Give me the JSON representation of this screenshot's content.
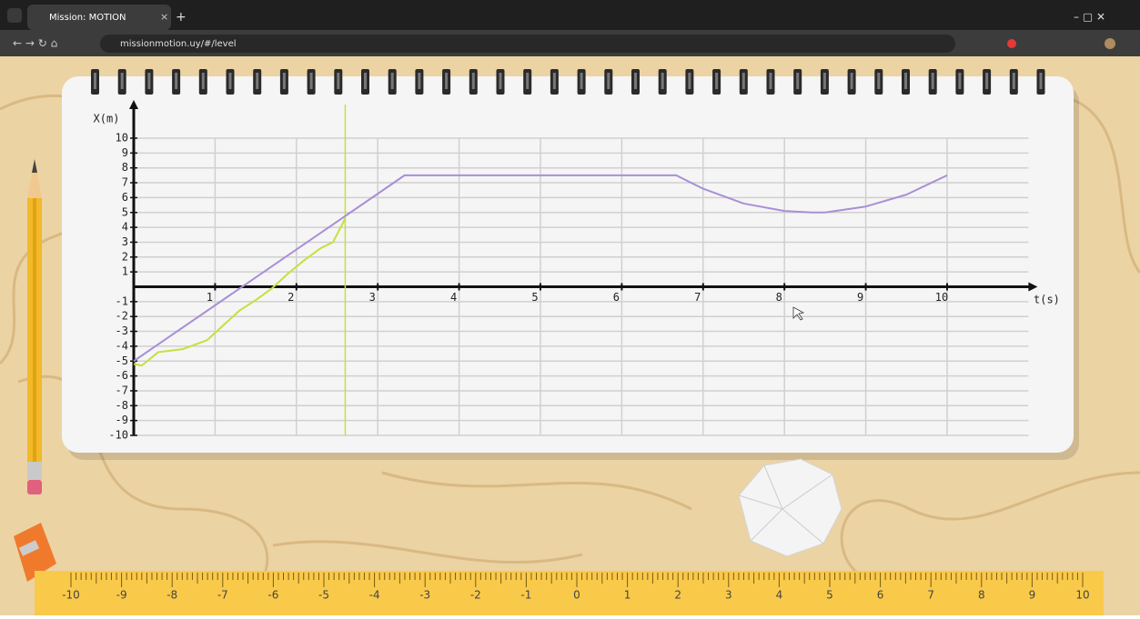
{
  "browser": {
    "tab_title": "Mission: MOTION",
    "url": "missionmotion.uy/#/level"
  },
  "chart_data": {
    "type": "line",
    "y_label": "X(m)",
    "x_label": "t(s)",
    "xlim": [
      0,
      11
    ],
    "xticks": [
      1,
      2,
      3,
      4,
      5,
      6,
      7,
      8,
      9,
      10
    ],
    "ylim": [
      -10,
      10
    ],
    "yticks": [
      10,
      9,
      8,
      7,
      6,
      5,
      4,
      3,
      2,
      1,
      -1,
      -2,
      -3,
      -4,
      -5,
      -6,
      -7,
      -8,
      -9,
      -10
    ],
    "grid": true,
    "series": [
      {
        "color": "#a98fd6",
        "x": [
          0,
          3.33,
          6.67,
          7,
          7.5,
          8,
          8.33,
          8.5,
          9,
          9.5,
          10
        ],
        "values": [
          -5,
          7.5,
          7.5,
          6.6,
          5.6,
          5.1,
          5.0,
          5.0,
          5.4,
          6.2,
          7.5
        ]
      },
      {
        "color": "#c6e03c",
        "x": [
          0,
          0.1,
          0.3,
          0.6,
          0.9,
          1.1,
          1.3,
          1.5,
          1.7,
          1.9,
          2.1,
          2.3,
          2.45,
          2.6
        ],
        "values": [
          -5.2,
          -5.3,
          -4.4,
          -4.2,
          -3.6,
          -2.6,
          -1.6,
          -0.9,
          -0.1,
          0.9,
          1.8,
          2.6,
          3.0,
          4.6
        ]
      }
    ],
    "cursor": {
      "x": 2.6,
      "color": "#c6e03c"
    }
  },
  "ruler": {
    "labels": [
      -10,
      -9,
      -8,
      -7,
      -6,
      -5,
      -4,
      -3,
      -2,
      -1,
      0,
      1,
      2,
      3,
      4,
      5,
      6,
      7,
      8,
      9,
      10
    ]
  }
}
